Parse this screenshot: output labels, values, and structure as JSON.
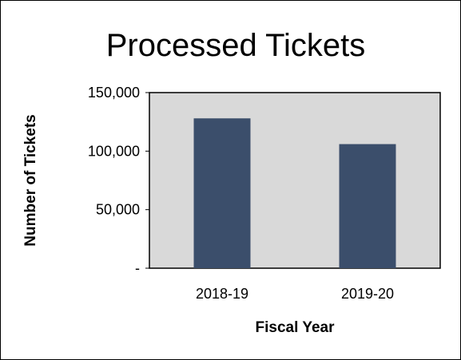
{
  "chart_data": {
    "type": "bar",
    "title": "Processed Tickets",
    "xlabel": "Fiscal Year",
    "ylabel": "Number of Tickets",
    "categories": [
      "2018-19",
      "2019-20"
    ],
    "values": [
      128000,
      106000
    ],
    "ylim": [
      0,
      150000
    ],
    "yticks": [
      0,
      50000,
      100000,
      150000
    ],
    "ytick_labels": [
      "-",
      "50,000",
      "100,000",
      "150,000"
    ],
    "grid": false,
    "legend": "none",
    "colors": {
      "bar": "#3b4e6b",
      "plot_background": "#d9d9d9",
      "plot_border": "#000000"
    }
  }
}
